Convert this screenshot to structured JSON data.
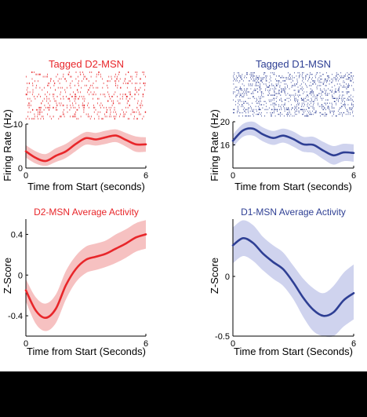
{
  "chart_data": [
    {
      "id": "d2-raster-rate",
      "type": "line",
      "title": "Tagged D2-MSN",
      "color": "#e8262a",
      "band_color": "#f6c1c1",
      "xlabel": "Time from Start (seconds)",
      "ylabel": "Firing Rate (Hz)",
      "xlim": [
        0,
        6
      ],
      "ylim": [
        0,
        10
      ],
      "xticks": [
        "0",
        "6"
      ],
      "yticks": [
        {
          "v": 0,
          "label": "0"
        },
        {
          "v": 10,
          "label": "10"
        }
      ],
      "x": [
        0,
        0.5,
        1,
        1.5,
        2,
        2.5,
        3,
        3.5,
        4,
        4.5,
        5,
        5.5,
        6
      ],
      "values": [
        3.8,
        2.3,
        1.6,
        2.8,
        3.8,
        5.5,
        6.8,
        6.5,
        7.0,
        7.4,
        6.4,
        5.4,
        5.4
      ],
      "upper": [
        5.2,
        3.8,
        3.2,
        4.5,
        5.5,
        7.0,
        8.2,
        8.0,
        8.5,
        8.8,
        8.0,
        7.2,
        7.0
      ],
      "lower": [
        2.4,
        1.0,
        0.5,
        1.4,
        2.3,
        3.9,
        5.3,
        5.1,
        5.5,
        5.9,
        4.9,
        3.7,
        3.7
      ]
    },
    {
      "id": "d1-raster-rate",
      "type": "line",
      "title": "Tagged D1-MSN",
      "color": "#2e3f94",
      "band_color": "#cfd3ee",
      "xlabel": "Time from Start (seconds)",
      "ylabel": "Firing Rate (Hz)",
      "xlim": [
        0,
        6
      ],
      "ylim": [
        12,
        20
      ],
      "xticks": [
        "0",
        "6"
      ],
      "yticks": [
        {
          "v": 16,
          "label": "16"
        },
        {
          "v": 20,
          "label": "20"
        }
      ],
      "x": [
        0,
        0.5,
        1,
        1.5,
        2,
        2.5,
        3,
        3.5,
        4,
        4.5,
        5,
        5.5,
        6
      ],
      "values": [
        16.7,
        18.5,
        18.8,
        17.8,
        17.2,
        17.6,
        17.0,
        16.1,
        16.0,
        15.0,
        14.2,
        14.7,
        14.6
      ],
      "upper": [
        17.8,
        19.6,
        20.0,
        19.0,
        18.4,
        18.8,
        18.3,
        17.4,
        17.4,
        16.5,
        15.8,
        16.2,
        16.1
      ],
      "lower": [
        15.6,
        17.4,
        17.6,
        16.6,
        16.0,
        16.4,
        15.7,
        14.8,
        14.6,
        13.5,
        12.6,
        13.2,
        13.1
      ]
    },
    {
      "id": "d2-average",
      "type": "line",
      "title": "D2-MSN Average Activity",
      "color": "#e8262a",
      "band_color": "#f6c1c1",
      "xlabel": "Time from Start (Seconds)",
      "ylabel": "Z-Score",
      "xlim": [
        0,
        6
      ],
      "ylim": [
        -0.6,
        0.55
      ],
      "xticks": [
        "0",
        "6"
      ],
      "yticks": [
        {
          "v": 0.4,
          "label": "0.4"
        },
        {
          "v": 0,
          "label": "0"
        },
        {
          "v": -0.4,
          "label": "-0.4"
        }
      ],
      "x": [
        0,
        0.5,
        1,
        1.5,
        2,
        2.5,
        3,
        3.5,
        4,
        4.5,
        5,
        5.5,
        6
      ],
      "values": [
        -0.15,
        -0.35,
        -0.42,
        -0.33,
        -0.1,
        0.06,
        0.15,
        0.18,
        0.21,
        0.26,
        0.31,
        0.37,
        0.4
      ],
      "upper": [
        -0.04,
        -0.22,
        -0.28,
        -0.19,
        0.04,
        0.19,
        0.28,
        0.31,
        0.34,
        0.4,
        0.45,
        0.51,
        0.54
      ],
      "lower": [
        -0.26,
        -0.48,
        -0.55,
        -0.47,
        -0.24,
        -0.07,
        0.02,
        0.05,
        0.08,
        0.12,
        0.17,
        0.23,
        0.26
      ]
    },
    {
      "id": "d1-average",
      "type": "line",
      "title": "D1-MSN Average Activity",
      "color": "#2e3f94",
      "band_color": "#cfd3ee",
      "xlabel": "Time from Start (Seconds)",
      "ylabel": "Z-Score",
      "xlim": [
        0,
        6
      ],
      "ylim": [
        -0.5,
        0.48
      ],
      "xticks": [
        "0",
        "6"
      ],
      "yticks": [
        {
          "v": 0,
          "label": "0"
        },
        {
          "v": -0.5,
          "label": "-0.5"
        }
      ],
      "x": [
        0,
        0.5,
        1,
        1.5,
        2,
        2.5,
        3,
        3.5,
        4,
        4.5,
        5,
        5.5,
        6
      ],
      "values": [
        0.26,
        0.32,
        0.28,
        0.19,
        0.12,
        0.06,
        -0.05,
        -0.18,
        -0.28,
        -0.33,
        -0.3,
        -0.2,
        -0.14
      ],
      "upper": [
        0.41,
        0.47,
        0.43,
        0.33,
        0.26,
        0.2,
        0.09,
        -0.02,
        -0.1,
        -0.14,
        -0.08,
        0.03,
        0.1
      ],
      "lower": [
        0.11,
        0.17,
        0.13,
        0.05,
        -0.02,
        -0.08,
        -0.19,
        -0.34,
        -0.46,
        -0.5,
        -0.5,
        -0.42,
        -0.36
      ]
    }
  ]
}
